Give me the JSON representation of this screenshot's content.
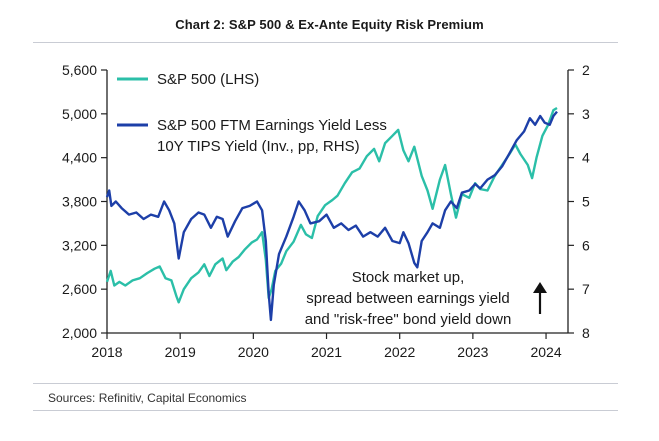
{
  "title": "Chart 2: S&P 500 & Ex-Ante Equity Risk Premium",
  "source": "Sources: Refinitiv, Capital Economics",
  "chart_data": {
    "type": "line",
    "title": "Chart 2: S&P 500 & Ex-Ante Equity Risk Premium",
    "x_range": [
      2018.0,
      2024.3
    ],
    "x_ticks": [
      "2018",
      "2019",
      "2020",
      "2021",
      "2022",
      "2023",
      "2024"
    ],
    "left_axis": {
      "range": [
        2000,
        5600
      ],
      "ticks": [
        "2,000",
        "2,600",
        "3,200",
        "3,800",
        "4,400",
        "5,000",
        "5,600"
      ]
    },
    "right_axis": {
      "range": [
        2,
        8
      ],
      "inverted": true,
      "ticks": [
        "2",
        "3",
        "4",
        "5",
        "6",
        "7",
        "8"
      ]
    },
    "legend_position": "top-left",
    "annotation": {
      "lines": [
        "Stock market up,",
        "spread between earnings yield",
        "and \"risk-free\" bond yield down"
      ],
      "arrow": "up"
    },
    "series": [
      {
        "name": "S&P 500 (LHS)",
        "axis": "left",
        "color": "#2bbfa8",
        "points": [
          [
            2018.0,
            2700
          ],
          [
            2018.05,
            2850
          ],
          [
            2018.1,
            2650
          ],
          [
            2018.17,
            2700
          ],
          [
            2018.25,
            2650
          ],
          [
            2018.35,
            2720
          ],
          [
            2018.45,
            2750
          ],
          [
            2018.55,
            2820
          ],
          [
            2018.65,
            2880
          ],
          [
            2018.72,
            2910
          ],
          [
            2018.8,
            2750
          ],
          [
            2018.88,
            2720
          ],
          [
            2018.95,
            2500
          ],
          [
            2018.98,
            2420
          ],
          [
            2019.05,
            2600
          ],
          [
            2019.15,
            2750
          ],
          [
            2019.25,
            2830
          ],
          [
            2019.33,
            2940
          ],
          [
            2019.4,
            2780
          ],
          [
            2019.48,
            2940
          ],
          [
            2019.58,
            3020
          ],
          [
            2019.63,
            2860
          ],
          [
            2019.72,
            2980
          ],
          [
            2019.8,
            3040
          ],
          [
            2019.88,
            3140
          ],
          [
            2019.98,
            3240
          ],
          [
            2020.05,
            3280
          ],
          [
            2020.12,
            3380
          ],
          [
            2020.17,
            3000
          ],
          [
            2020.21,
            2480
          ],
          [
            2020.25,
            2600
          ],
          [
            2020.3,
            2850
          ],
          [
            2020.38,
            2950
          ],
          [
            2020.45,
            3120
          ],
          [
            2020.55,
            3250
          ],
          [
            2020.65,
            3480
          ],
          [
            2020.72,
            3350
          ],
          [
            2020.8,
            3300
          ],
          [
            2020.88,
            3600
          ],
          [
            2020.98,
            3750
          ],
          [
            2021.08,
            3820
          ],
          [
            2021.15,
            3880
          ],
          [
            2021.25,
            4050
          ],
          [
            2021.35,
            4200
          ],
          [
            2021.45,
            4250
          ],
          [
            2021.55,
            4420
          ],
          [
            2021.65,
            4520
          ],
          [
            2021.72,
            4350
          ],
          [
            2021.8,
            4600
          ],
          [
            2021.9,
            4700
          ],
          [
            2021.98,
            4780
          ],
          [
            2022.05,
            4500
          ],
          [
            2022.12,
            4350
          ],
          [
            2022.2,
            4550
          ],
          [
            2022.3,
            4150
          ],
          [
            2022.38,
            3950
          ],
          [
            2022.45,
            3700
          ],
          [
            2022.55,
            4100
          ],
          [
            2022.62,
            4300
          ],
          [
            2022.7,
            3900
          ],
          [
            2022.77,
            3580
          ],
          [
            2022.85,
            3900
          ],
          [
            2022.95,
            3850
          ],
          [
            2023.03,
            4050
          ],
          [
            2023.1,
            3970
          ],
          [
            2023.2,
            3950
          ],
          [
            2023.3,
            4150
          ],
          [
            2023.4,
            4300
          ],
          [
            2023.5,
            4450
          ],
          [
            2023.58,
            4580
          ],
          [
            2023.65,
            4450
          ],
          [
            2023.75,
            4300
          ],
          [
            2023.81,
            4120
          ],
          [
            2023.87,
            4400
          ],
          [
            2023.95,
            4700
          ],
          [
            2024.03,
            4850
          ],
          [
            2024.1,
            5050
          ],
          [
            2024.15,
            5080
          ]
        ]
      },
      {
        "name": "S&P 500 FTM Earnings Yield Less 10Y TIPS Yield (Inv., pp, RHS)",
        "axis": "right",
        "color": "#1d3fa8",
        "points": [
          [
            2018.0,
            4.9
          ],
          [
            2018.03,
            4.75
          ],
          [
            2018.06,
            5.1
          ],
          [
            2018.12,
            5.0
          ],
          [
            2018.2,
            5.15
          ],
          [
            2018.3,
            5.3
          ],
          [
            2018.4,
            5.25
          ],
          [
            2018.5,
            5.4
          ],
          [
            2018.6,
            5.3
          ],
          [
            2018.7,
            5.35
          ],
          [
            2018.78,
            5.0
          ],
          [
            2018.85,
            5.2
          ],
          [
            2018.92,
            5.5
          ],
          [
            2018.98,
            6.3
          ],
          [
            2019.05,
            5.7
          ],
          [
            2019.15,
            5.4
          ],
          [
            2019.25,
            5.25
          ],
          [
            2019.33,
            5.3
          ],
          [
            2019.42,
            5.6
          ],
          [
            2019.5,
            5.35
          ],
          [
            2019.58,
            5.4
          ],
          [
            2019.65,
            5.8
          ],
          [
            2019.75,
            5.45
          ],
          [
            2019.85,
            5.15
          ],
          [
            2019.95,
            5.1
          ],
          [
            2020.05,
            5.0
          ],
          [
            2020.12,
            5.2
          ],
          [
            2020.17,
            5.9
          ],
          [
            2020.21,
            7.1
          ],
          [
            2020.24,
            7.7
          ],
          [
            2020.28,
            6.9
          ],
          [
            2020.35,
            6.2
          ],
          [
            2020.45,
            5.8
          ],
          [
            2020.55,
            5.35
          ],
          [
            2020.62,
            5.0
          ],
          [
            2020.7,
            5.2
          ],
          [
            2020.78,
            5.5
          ],
          [
            2020.9,
            5.45
          ],
          [
            2021.0,
            5.3
          ],
          [
            2021.1,
            5.6
          ],
          [
            2021.2,
            5.5
          ],
          [
            2021.3,
            5.65
          ],
          [
            2021.4,
            5.55
          ],
          [
            2021.5,
            5.8
          ],
          [
            2021.6,
            5.7
          ],
          [
            2021.7,
            5.8
          ],
          [
            2021.8,
            5.6
          ],
          [
            2021.9,
            5.9
          ],
          [
            2022.0,
            5.95
          ],
          [
            2022.05,
            5.7
          ],
          [
            2022.12,
            5.95
          ],
          [
            2022.2,
            6.4
          ],
          [
            2022.24,
            6.5
          ],
          [
            2022.3,
            5.9
          ],
          [
            2022.38,
            5.7
          ],
          [
            2022.45,
            5.5
          ],
          [
            2022.55,
            5.6
          ],
          [
            2022.62,
            5.2
          ],
          [
            2022.7,
            5.0
          ],
          [
            2022.78,
            5.15
          ],
          [
            2022.85,
            4.8
          ],
          [
            2022.95,
            4.75
          ],
          [
            2023.03,
            4.6
          ],
          [
            2023.1,
            4.7
          ],
          [
            2023.2,
            4.5
          ],
          [
            2023.3,
            4.4
          ],
          [
            2023.4,
            4.2
          ],
          [
            2023.5,
            3.9
          ],
          [
            2023.6,
            3.6
          ],
          [
            2023.7,
            3.4
          ],
          [
            2023.78,
            3.1
          ],
          [
            2023.85,
            3.25
          ],
          [
            2023.92,
            3.05
          ],
          [
            2023.98,
            3.2
          ],
          [
            2024.05,
            3.25
          ],
          [
            2024.1,
            3.05
          ],
          [
            2024.15,
            2.95
          ]
        ]
      }
    ]
  }
}
